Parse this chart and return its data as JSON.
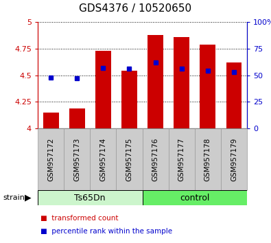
{
  "title": "GDS4376 / 10520650",
  "samples": [
    "GSM957172",
    "GSM957173",
    "GSM957174",
    "GSM957175",
    "GSM957176",
    "GSM957177",
    "GSM957178",
    "GSM957179"
  ],
  "red_values": [
    4.15,
    4.19,
    4.73,
    4.54,
    4.88,
    4.86,
    4.79,
    4.62
  ],
  "blue_values": [
    4.48,
    4.47,
    4.57,
    4.56,
    4.62,
    4.56,
    4.54,
    4.53
  ],
  "y_min": 4.0,
  "y_max": 5.0,
  "y_ticks": [
    4.0,
    4.25,
    4.5,
    4.75,
    5.0
  ],
  "y_tick_labels": [
    "4",
    "4.25",
    "4.5",
    "4.75",
    "5"
  ],
  "y2_ticks": [
    0,
    25,
    50,
    75,
    100
  ],
  "y2_tick_labels": [
    "0",
    "25",
    "50",
    "75",
    "100%"
  ],
  "group_ts_color": "#ccf5cc",
  "group_ctrl_color": "#66ee66",
  "group_ts_label": "Ts65Dn",
  "group_ctrl_label": "control",
  "bar_color": "#cc0000",
  "marker_color": "#0000cc",
  "tick_color_left": "#cc0000",
  "tick_color_right": "#0000cc",
  "strain_label": "strain",
  "xtick_bg": "#cccccc",
  "xtick_edge": "#999999",
  "legend_red_label": "transformed count",
  "legend_blue_label": "percentile rank within the sample",
  "bar_width": 0.6,
  "title_fontsize": 11
}
